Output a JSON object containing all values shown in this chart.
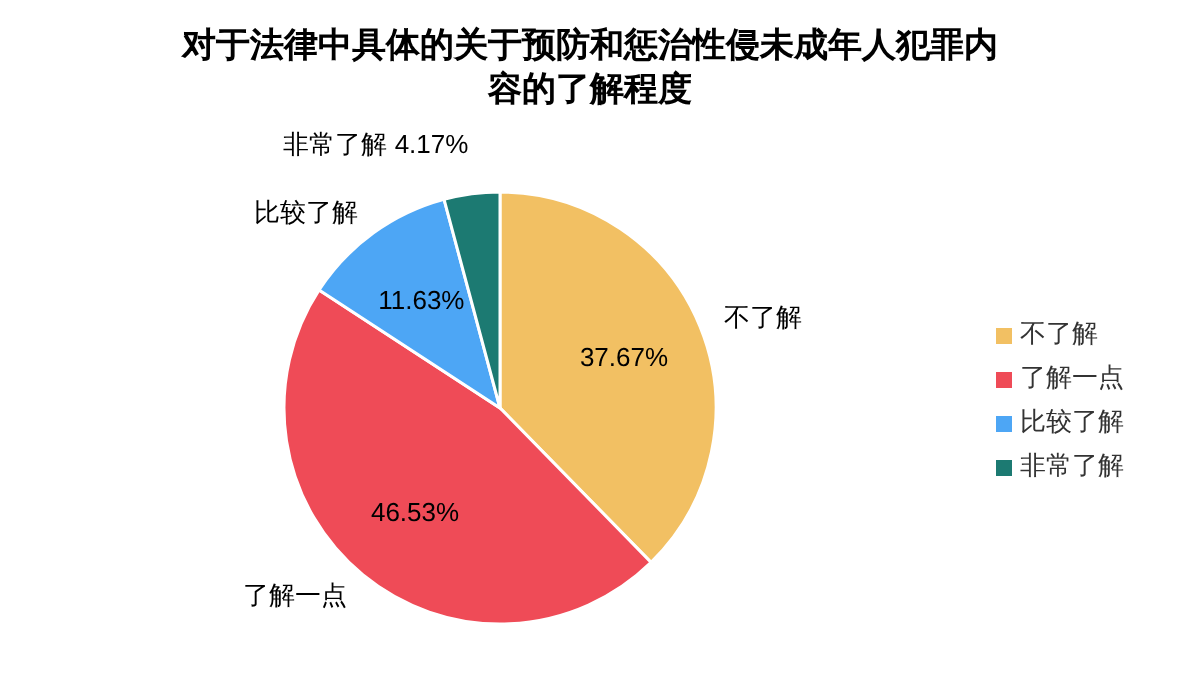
{
  "chart_data": {
    "type": "pie",
    "title": "对于法律中具体的关于预防和惩治性侵未成年人犯罪内容的了解程度",
    "categories": [
      "不了解",
      "了解一点",
      "比较了解",
      "非常了解"
    ],
    "values": [
      37.67,
      46.53,
      11.63,
      4.17
    ],
    "value_labels": [
      "37.67%",
      "46.53%",
      "11.63%",
      "4.17%"
    ],
    "colors": [
      "#f2c063",
      "#ef4b57",
      "#4da6f5",
      "#1c7a72"
    ],
    "legend": "right"
  }
}
